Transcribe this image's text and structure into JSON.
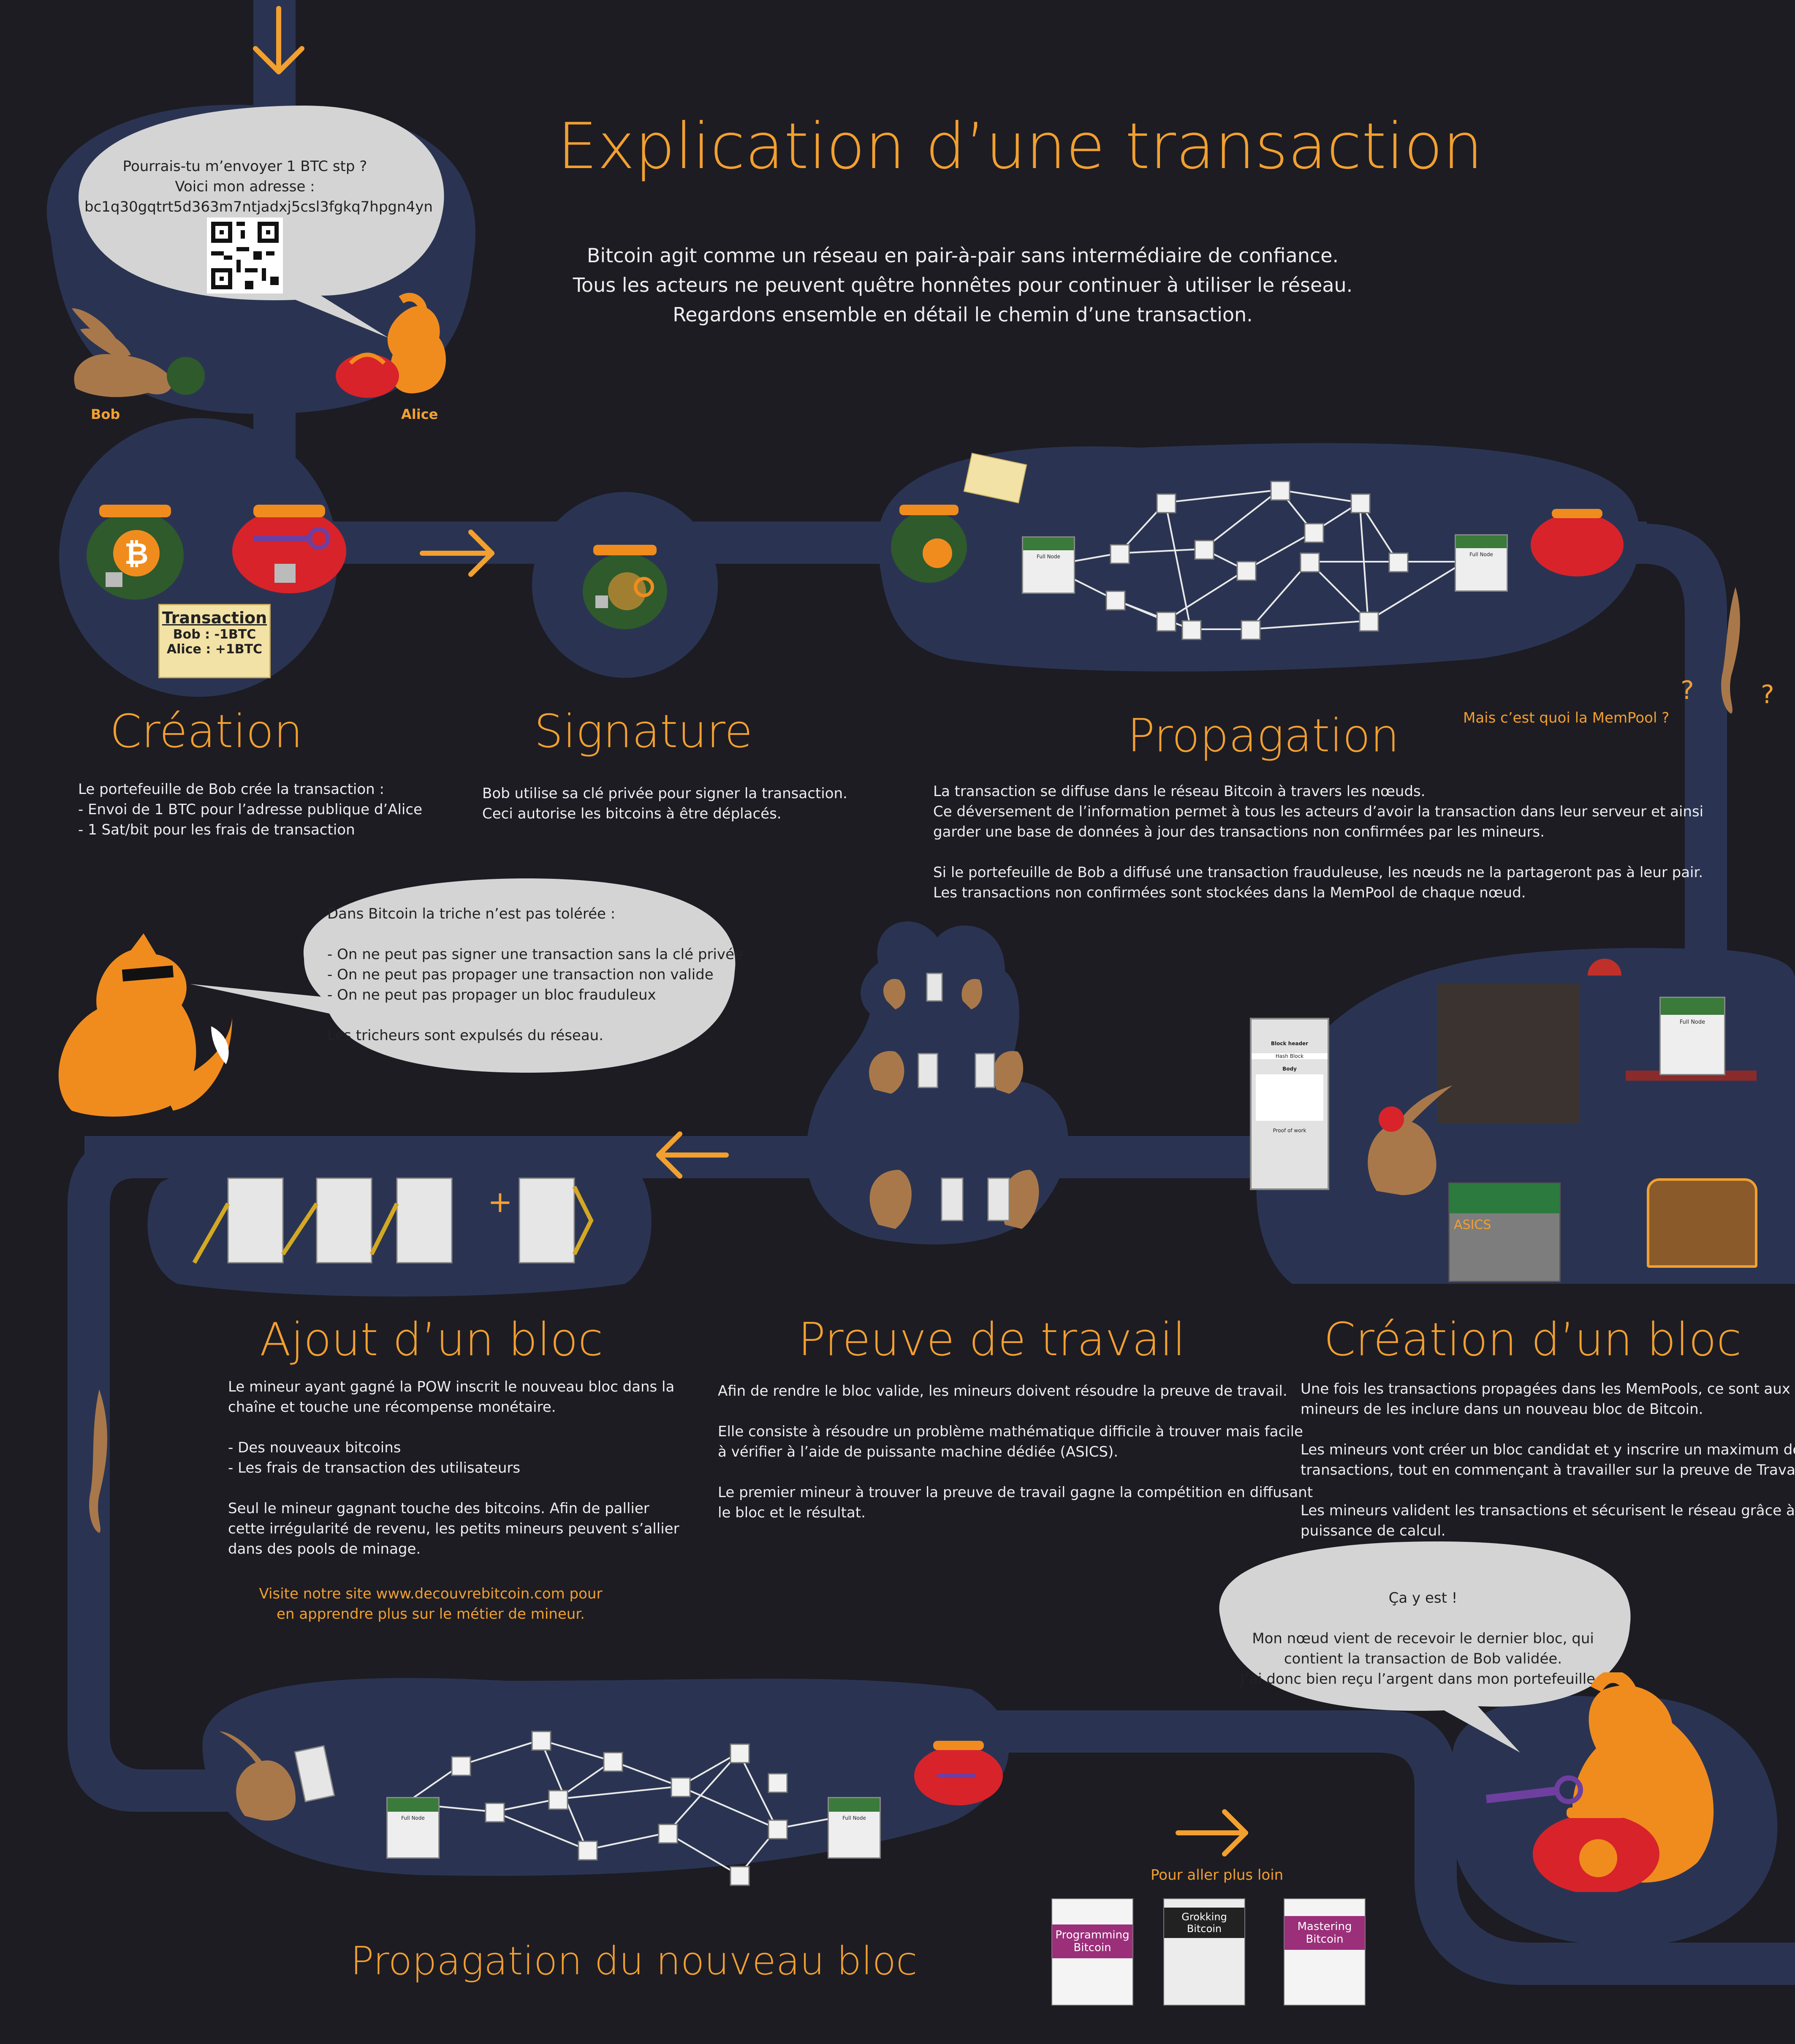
{
  "header": {
    "title": "Explication d’une transaction",
    "intro": [
      "Bitcoin agit comme un réseau en pair-à-pair sans intermédiaire de confiance.",
      "Tous les acteurs ne peuvent quêtre honnêtes pour continuer à utiliser le réseau.",
      "Regardons ensemble en détail le chemin d’une transaction."
    ]
  },
  "intro_scene": {
    "bubble_lines": [
      "Pourrais-tu m’envoyer 1 BTC stp ?",
      "Voici mon adresse :",
      "bc1q30gqtrt5d363m7ntjadxj5csl3fgkq7hpgn4yn"
    ],
    "bob_label": "Bob",
    "alice_label": "Alice"
  },
  "scroll": {
    "header": "Transaction",
    "lines": [
      "Bob : -1BTC",
      "Alice : +1BTC"
    ]
  },
  "steps": {
    "creation": {
      "title": "Création",
      "lines": [
        "Le portefeuille de Bob crée la transaction :",
        "- Envoi de 1 BTC pour l’adresse publique d’Alice",
        "- 1 Sat/bit pour les frais de transaction"
      ]
    },
    "signature": {
      "title": "Signature",
      "lines": [
        "Bob utilise sa clé privée pour signer la transaction.",
        "Ceci autorise les bitcoins à être déplacés."
      ]
    },
    "propagation": {
      "title": "Propagation",
      "lines": [
        "La transaction se diffuse dans le réseau Bitcoin à travers les nœuds.",
        "Ce déversement de l’information permet à tous les acteurs d’avoir la transaction dans leur serveur et ainsi",
        "garder une base de données à jour des transactions non confirmées par les mineurs.",
        "",
        "Si le portefeuille de Bob a diffusé une transaction frauduleuse, les nœuds ne la partageront pas à leur pair.",
        "Les transactions non confirmées sont stockées dans la MemPool de chaque nœud."
      ]
    },
    "mempool_question": "Mais c’est quoi la MemPool ?",
    "creation_bloc": {
      "title": "Création d’un bloc",
      "lines": [
        "Une fois les transactions propagées dans les MemPools, ce sont aux",
        "mineurs de les inclure dans un nouveau bloc de Bitcoin.",
        "",
        "Les mineurs vont créer un bloc candidat et y inscrire un maximum de",
        "transactions, tout en commençant à travailler sur la preuve de Travail.",
        "",
        "Les mineurs valident les transactions et sécurisent le réseau grâce à leur",
        "puissance de calcul."
      ]
    },
    "preuve": {
      "title": "Preuve de travail",
      "lines": [
        "Afin de rendre le bloc valide, les mineurs doivent résoudre la preuve de travail.",
        "",
        "Elle consiste à résoudre un problème mathématique difficile à trouver mais facile",
        "à vérifier à l’aide de puissante machine dédiée (ASICS).",
        "",
        "Le premier mineur à trouver la preuve de travail gagne la compétition en diffusant",
        "le bloc et le résultat."
      ]
    },
    "ajout": {
      "title": "Ajout d’un bloc",
      "lines": [
        "Le mineur ayant gagné la POW inscrit le nouveau bloc dans la",
        "chaîne et touche une récompense monétaire.",
        "",
        "- Des nouveaux bitcoins",
        "- Les frais de transaction des utilisateurs",
        "",
        "Seul le mineur gagnant touche des bitcoins. Afin de pallier",
        "cette irrégularité de revenu, les petits mineurs peuvent s’allier",
        "dans des pools de minage."
      ],
      "site_lines": [
        "Visite notre site www.decouvrebitcoin.com pour",
        "en apprendre plus sur le métier de mineur."
      ]
    },
    "propagation_bloc": {
      "title": "Propagation du nouveau bloc"
    }
  },
  "fox_bubble": {
    "lines": [
      "Dans Bitcoin la triche n’est pas tolérée :",
      "",
      "- On ne peut pas signer une transaction sans la clé privée",
      "- On ne peut pas propager une transaction non valide",
      "- On ne peut pas propager un bloc frauduleux",
      "",
      "Les tricheurs sont expulsés du réseau."
    ]
  },
  "alice_bubble": {
    "lines": [
      "Ça y est !",
      "",
      "Mon nœud vient de recevoir le dernier bloc, qui",
      "contient la transaction de Bob validée.",
      "J’ai donc bien reçu l’argent dans mon portefeuille !"
    ]
  },
  "node_label": "Full Node",
  "asics_label": "ASICS",
  "block_labels": [
    "Block header",
    "Hash Block",
    "Body",
    "Proof of work"
  ],
  "further": {
    "label": "Pour aller plus loin",
    "books": [
      "Programming Bitcoin",
      "Grokking Bitcoin",
      "Mastering Bitcoin"
    ]
  },
  "colors": {
    "background": "#1d1c23",
    "path": "#2a3452",
    "accent": "#f2a030",
    "bubble": "#d4d4d4",
    "wallet_green": "#2f5a2c",
    "wallet_red": "#d8232a"
  }
}
